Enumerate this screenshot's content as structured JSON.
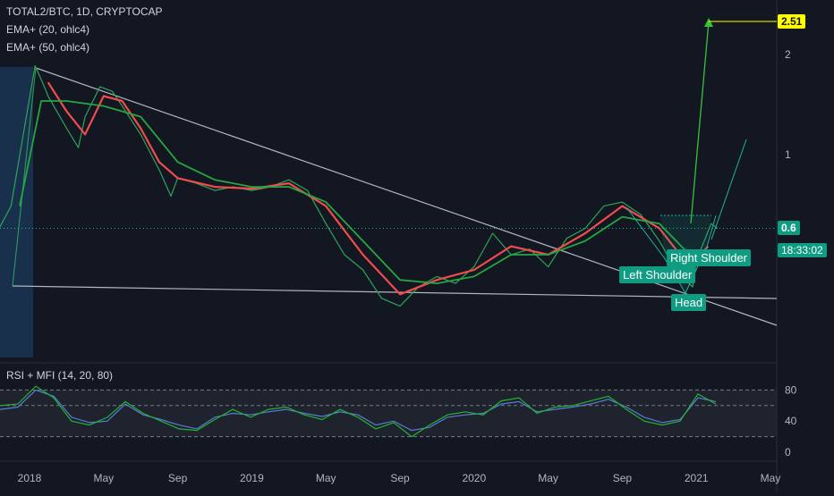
{
  "header": {
    "symbol": "TOTAL2/BTC, 1D, CRYPTOCAP",
    "ema1": "EMA+ (20, ohlc4)",
    "ema2": "EMA+ (50, ohlc4)"
  },
  "annotations": {
    "left_shoulder": "Left Shoulder",
    "right_shoulder": "Right Shoulder",
    "head": "Head",
    "target_value": "2.51",
    "last_value": "0.6",
    "countdown": "18:33:02"
  },
  "colors": {
    "background": "#131722",
    "price_line": "#2fa35b",
    "ema_fast": "#ef4c4c",
    "ema_slow": "#26a641",
    "trendline": "#b2b5be",
    "target": "#ffff00",
    "pattern": "#1ab59a",
    "rsi": "#5b7bd6",
    "mfi": "#20b52f"
  },
  "rsi_panel": {
    "title": "RSI + MFI (14, 20, 80)"
  },
  "chart_data": [
    {
      "type": "line",
      "title": "TOTAL2/BTC, 1D, CRYPTOCAP",
      "scale": "log",
      "x_ticks": [
        "2018",
        "May",
        "Sep",
        "2019",
        "May",
        "Sep",
        "2020",
        "May",
        "Sep",
        "2021",
        "May"
      ],
      "y_ticks": [
        2,
        1
      ],
      "series": [
        {
          "name": "TOTAL2/BTC",
          "points": [
            [
              "2017-11",
              0.55
            ],
            [
              "2017-12",
              0.7
            ],
            [
              "2018-01-10",
              1.85
            ],
            [
              "2018-01-25",
              1.6
            ],
            [
              "2018-02",
              1.5
            ],
            [
              "2018-03",
              1.2
            ],
            [
              "2018-03-20",
              1.05
            ],
            [
              "2018-04",
              1.3
            ],
            [
              "2018-04-25",
              1.6
            ],
            [
              "2018-05-15",
              1.55
            ],
            [
              "2018-06",
              1.4
            ],
            [
              "2018-07",
              1.15
            ],
            [
              "2018-08",
              0.9
            ],
            [
              "2018-08-20",
              0.75
            ],
            [
              "2018-09",
              0.85
            ],
            [
              "2018-10",
              0.82
            ],
            [
              "2018-11",
              0.78
            ],
            [
              "2018-12",
              0.8
            ],
            [
              "2019-01",
              0.78
            ],
            [
              "2019-02",
              0.8
            ],
            [
              "2019-03",
              0.84
            ],
            [
              "2019-04",
              0.78
            ],
            [
              "2019-05",
              0.62
            ],
            [
              "2019-06",
              0.5
            ],
            [
              "2019-07",
              0.45
            ],
            [
              "2019-08",
              0.37
            ],
            [
              "2019-09",
              0.35
            ],
            [
              "2019-10",
              0.4
            ],
            [
              "2019-11",
              0.43
            ],
            [
              "2019-12",
              0.41
            ],
            [
              "2020-01",
              0.46
            ],
            [
              "2020-02",
              0.58
            ],
            [
              "2020-03",
              0.5
            ],
            [
              "2020-04",
              0.52
            ],
            [
              "2020-05",
              0.46
            ],
            [
              "2020-06",
              0.56
            ],
            [
              "2020-07",
              0.6
            ],
            [
              "2020-08",
              0.7
            ],
            [
              "2020-09",
              0.72
            ],
            [
              "2020-10",
              0.66
            ],
            [
              "2020-11",
              0.55
            ],
            [
              "2020-12",
              0.44
            ],
            [
              "2020-12-25",
              0.4
            ],
            [
              "2021-01",
              0.48
            ],
            [
              "2021-01-25",
              0.62
            ],
            [
              "2021-02-05",
              0.6
            ]
          ]
        },
        {
          "name": "EMA 20",
          "points": [
            [
              "2018-02",
              1.65
            ],
            [
              "2018-03",
              1.35
            ],
            [
              "2018-04",
              1.15
            ],
            [
              "2018-05",
              1.5
            ],
            [
              "2018-06",
              1.45
            ],
            [
              "2018-07",
              1.2
            ],
            [
              "2018-08",
              0.95
            ],
            [
              "2018-09",
              0.85
            ],
            [
              "2018-11",
              0.8
            ],
            [
              "2019-01",
              0.79
            ],
            [
              "2019-03",
              0.82
            ],
            [
              "2019-05",
              0.7
            ],
            [
              "2019-07",
              0.5
            ],
            [
              "2019-09",
              0.38
            ],
            [
              "2019-11",
              0.42
            ],
            [
              "2020-01",
              0.45
            ],
            [
              "2020-03",
              0.53
            ],
            [
              "2020-05",
              0.5
            ],
            [
              "2020-07",
              0.58
            ],
            [
              "2020-09",
              0.7
            ],
            [
              "2020-11",
              0.6
            ],
            [
              "2020-12-20",
              0.46
            ],
            [
              "2021-01-20",
              0.53
            ]
          ]
        },
        {
          "name": "EMA 50",
          "points": [
            [
              "2017-12-15",
              0.7
            ],
            [
              "2018-01-20",
              1.45
            ],
            [
              "2018-03",
              1.45
            ],
            [
              "2018-05",
              1.4
            ],
            [
              "2018-07",
              1.3
            ],
            [
              "2018-09",
              0.95
            ],
            [
              "2018-11",
              0.84
            ],
            [
              "2019-01",
              0.8
            ],
            [
              "2019-03",
              0.8
            ],
            [
              "2019-05",
              0.72
            ],
            [
              "2019-07",
              0.55
            ],
            [
              "2019-09",
              0.42
            ],
            [
              "2019-11",
              0.41
            ],
            [
              "2020-01",
              0.43
            ],
            [
              "2020-03",
              0.5
            ],
            [
              "2020-05",
              0.5
            ],
            [
              "2020-07",
              0.55
            ],
            [
              "2020-09",
              0.65
            ],
            [
              "2020-11",
              0.62
            ],
            [
              "2020-12-20",
              0.5
            ],
            [
              "2021-01-25",
              0.5
            ]
          ]
        }
      ]
    },
    {
      "type": "line",
      "title": "RSI + MFI (14, 20, 80)",
      "y_ticks": [
        80,
        40,
        0
      ],
      "series": [
        {
          "name": "RSI",
          "values": [
            55,
            58,
            80,
            72,
            45,
            38,
            40,
            62,
            48,
            42,
            35,
            30,
            45,
            50,
            48,
            52,
            55,
            50,
            46,
            52,
            48,
            35,
            40,
            28,
            32,
            45,
            48,
            50,
            62,
            65,
            52,
            55,
            58,
            62,
            68,
            58,
            45,
            38,
            42,
            70,
            65
          ]
        },
        {
          "name": "MFI",
          "values": [
            60,
            62,
            85,
            70,
            40,
            35,
            45,
            65,
            50,
            40,
            30,
            28,
            42,
            55,
            45,
            55,
            58,
            48,
            42,
            55,
            45,
            30,
            38,
            20,
            35,
            48,
            52,
            48,
            66,
            70,
            50,
            58,
            60,
            66,
            72,
            55,
            40,
            35,
            40,
            75,
            62
          ]
        }
      ]
    }
  ]
}
